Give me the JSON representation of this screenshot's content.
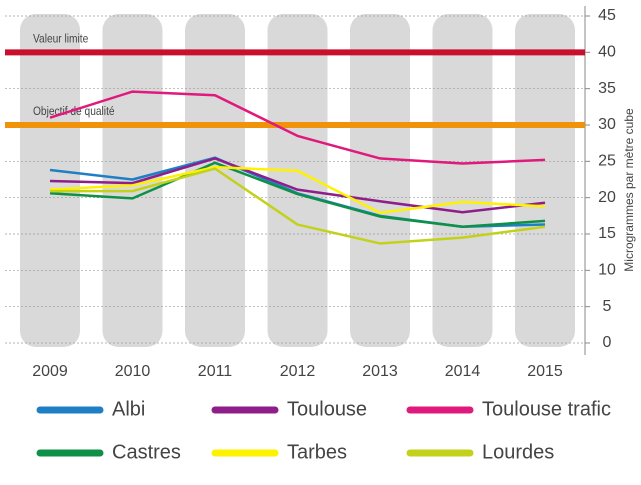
{
  "chart_data": {
    "type": "line",
    "y_label": "Microgrammes par mètre cube",
    "categories": [
      "2009",
      "2010",
      "2011",
      "2012",
      "2013",
      "2014",
      "2015"
    ],
    "series": [
      {
        "name": "Albi",
        "color": "#1f7fc4",
        "values": [
          23.8,
          22.5,
          25.5,
          20.6,
          17.5,
          16.0,
          16.3
        ]
      },
      {
        "name": "Toulouse",
        "color": "#8e1f8a",
        "values": [
          22.3,
          22.0,
          25.4,
          21.1,
          19.5,
          18.0,
          19.3
        ]
      },
      {
        "name": "Toulouse trafic",
        "color": "#e0197d",
        "values": [
          31.0,
          34.6,
          34.1,
          28.5,
          25.4,
          24.7,
          25.2
        ]
      },
      {
        "name": "Castres",
        "color": "#0e9146",
        "values": [
          20.6,
          19.9,
          24.8,
          20.5,
          17.4,
          16.0,
          16.8
        ]
      },
      {
        "name": "Tarbes",
        "color": "#fff200",
        "values": [
          21.1,
          21.7,
          24.2,
          23.7,
          17.9,
          19.4,
          18.8
        ]
      },
      {
        "name": "Lourdes",
        "color": "#c2d11a",
        "values": [
          20.9,
          20.9,
          24.0,
          16.3,
          13.7,
          14.5,
          16.0
        ]
      }
    ],
    "annotations": [
      {
        "label": "Valeur limite",
        "value": 40,
        "color": "#c8102e",
        "text_color": "#b0101e"
      },
      {
        "label": "Objectif de qualité",
        "value": 30,
        "color": "#f0920a",
        "text_color": "#e07a00"
      }
    ],
    "ylim": [
      0,
      45
    ],
    "yticks": [
      0,
      5,
      10,
      15,
      20,
      25,
      30,
      35,
      40,
      45
    ],
    "grid": true,
    "legend": "bottom"
  }
}
